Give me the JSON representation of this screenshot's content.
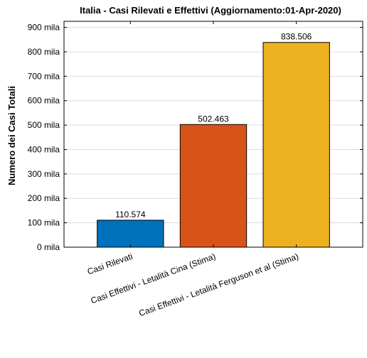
{
  "chart_data": {
    "type": "bar",
    "title": "Italia - Casi Rilevati e Effettivi (Aggiornamento:01-Apr-2020)",
    "xlabel": "",
    "ylabel": "Numero dei Casi Totali",
    "categories": [
      "Casi Rilevati",
      "Casi Effettivi - Letalità Cina (Stima)",
      "Casi Effettivi - Letalità Ferguson et al (Stima)"
    ],
    "values": [
      110574,
      502463,
      838506
    ],
    "data_labels": [
      "110.574",
      "502.463",
      "838.506"
    ],
    "colors": [
      "#0072bd",
      "#d95319",
      "#edb120"
    ],
    "ylim": [
      0,
      925000
    ],
    "yticks": [
      0,
      100000,
      200000,
      300000,
      400000,
      500000,
      600000,
      700000,
      800000,
      900000
    ],
    "ytick_labels": [
      "0 mila",
      "100 mila",
      "200 mila",
      "300 mila",
      "400 mila",
      "500 mila",
      "600 mila",
      "700 mila",
      "800 mila",
      "900 mila"
    ],
    "grid": true,
    "legend": "none"
  }
}
